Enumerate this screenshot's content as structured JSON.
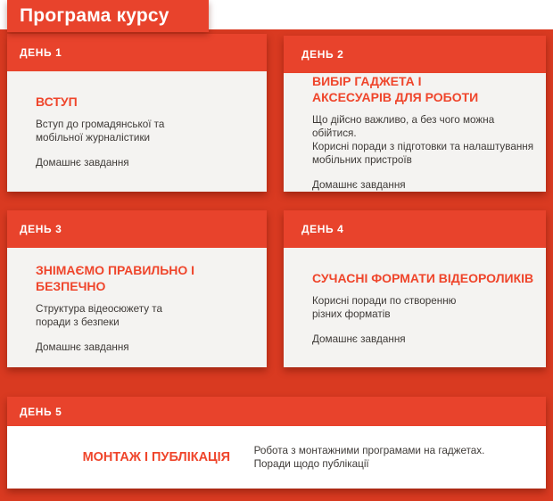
{
  "page": {
    "title": "Програма курсу"
  },
  "colors": {
    "background_red": "#D93A21",
    "header_red": "#E8432C",
    "card_title_red": "#EF452B",
    "card_body_grey": "#F4F3F1",
    "card_body_white": "#FFFFFF",
    "body_text": "#3E3A37",
    "banner_text": "#FFFFFF"
  },
  "days": [
    {
      "label": "ДЕНЬ 1",
      "title": "ВСТУП",
      "description": "Вступ до громадянської та\nмобільної журналістики",
      "homework": "Домашнє завдання"
    },
    {
      "label": "ДЕНЬ 2",
      "title": "ВИБІР ГАДЖЕТА І\nАКСЕСУАРІВ ДЛЯ РОБОТИ",
      "description": "Що дійсно важливо, а без чого можна обійтися.\nКорисні поради з підготовки та налаштування\nмобільних пристроїв",
      "homework": "Домашнє завдання"
    },
    {
      "label": "ДЕНЬ 3",
      "title": "ЗНІМАЄМО ПРАВИЛЬНО І БЕЗПЕЧНО",
      "description": "Структура відеосюжету та\nпоради з безпеки",
      "homework": "Домашнє завдання"
    },
    {
      "label": "ДЕНЬ 4",
      "title": "СУЧАСНІ ФОРМАТИ ВІДЕОРОЛИКІВ",
      "description": "Корисні поради по створенню\nрізних форматів",
      "homework": "Домашнє завдання"
    },
    {
      "label": "ДЕНЬ 5",
      "title": "МОНТАЖ І ПУБЛІКАЦІЯ",
      "description": "Робота з монтажними програмами на гаджетах.\nПоради щодо публікації"
    }
  ]
}
